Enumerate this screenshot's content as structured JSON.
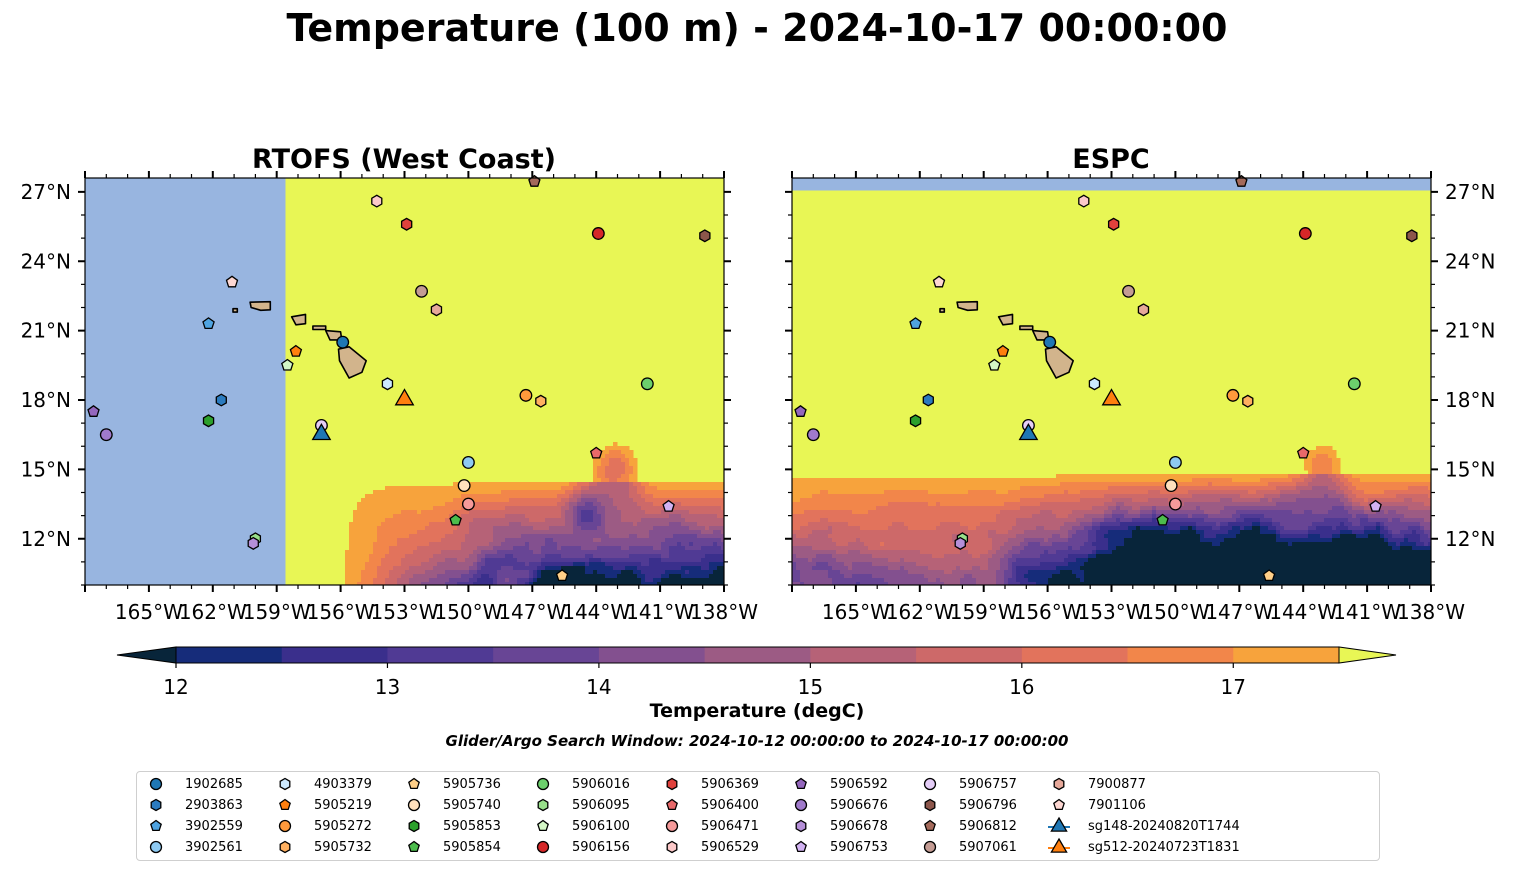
{
  "title": "Temperature (100 m) - 2024-10-17 00:00:00",
  "subtitle": "Glider/Argo Search Window: 2024-10-12 00:00:00 to 2024-10-17 00:00:00",
  "colorbar": {
    "label": "Temperature (degC)",
    "ticks": [
      "12",
      "13",
      "14",
      "15",
      "16",
      "17"
    ],
    "min": 12,
    "max": 17.5,
    "step": 0.5,
    "colors": [
      "#08253a",
      "#162c7a",
      "#3a2f8c",
      "#503a94",
      "#684595",
      "#83508f",
      "#9c5b84",
      "#b66277",
      "#cd6969",
      "#e2735c",
      "#f2864a",
      "#f7a33c",
      "#f6c63e",
      "#e8f655"
    ],
    "ocean_fill_color": "#e8f655",
    "nodata_color": "#98b5e0",
    "land_color": "#d2b48c"
  },
  "chart_data": [
    {
      "type": "map",
      "title": "RTOFS (West Coast)",
      "lon_range": [
        -168,
        -138
      ],
      "lat_range": [
        10,
        27.6
      ],
      "x_ticks": [
        "165°W",
        "162°W",
        "159°W",
        "156°W",
        "153°W",
        "150°W",
        "147°W",
        "144°W",
        "141°W",
        "138°W"
      ],
      "y_ticks": [
        "27°N",
        "24°N",
        "21°N",
        "18°N",
        "15°N",
        "12°N"
      ],
      "no_data_west_of_lon": -158.6,
      "cool_region_note": "cool water south of ~14°N east of 155°W"
    },
    {
      "type": "map",
      "title": "ESPC",
      "lon_range": [
        -168,
        -138
      ],
      "lat_range": [
        10,
        27.6
      ],
      "x_ticks": [
        "165°W",
        "162°W",
        "159°W",
        "156°W",
        "153°W",
        "150°W",
        "147°W",
        "144°W",
        "141°W",
        "138°W"
      ],
      "y_ticks": [
        "27°N",
        "24°N",
        "21°N",
        "18°N",
        "15°N",
        "12°N"
      ],
      "no_data_north_of_lat": 27.1,
      "cool_region_note": "cool water south of ~14°N across whole domain"
    }
  ],
  "observations": [
    {
      "id": "1902685",
      "marker": "circle",
      "color": "#1f77b4",
      "lon": -155.9,
      "lat": 20.5
    },
    {
      "id": "2903863",
      "marker": "hexagon",
      "color": "#2b7bbf",
      "lon": -161.6,
      "lat": 18.0
    },
    {
      "id": "3902559",
      "marker": "pentagon",
      "color": "#4fa3e0",
      "lon": -162.2,
      "lat": 21.3
    },
    {
      "id": "3902561",
      "marker": "circle",
      "color": "#8ecaf2",
      "lon": -150.0,
      "lat": 15.3
    },
    {
      "id": "4903379",
      "marker": "hexagon",
      "color": "#cce9ff",
      "lon": -153.8,
      "lat": 18.7
    },
    {
      "id": "5905219",
      "marker": "pentagon",
      "color": "#ff7f0e",
      "lon": -158.1,
      "lat": 20.1
    },
    {
      "id": "5905272",
      "marker": "circle",
      "color": "#ff9a3c",
      "lon": -147.3,
      "lat": 18.2
    },
    {
      "id": "5905732",
      "marker": "hexagon",
      "color": "#ffb060",
      "lon": -146.6,
      "lat": 17.95
    },
    {
      "id": "5905736",
      "marker": "pentagon",
      "color": "#ffcf88",
      "lon": -145.6,
      "lat": 10.4
    },
    {
      "id": "5905740",
      "marker": "circle",
      "color": "#ffe0bd",
      "lon": -150.2,
      "lat": 14.3
    },
    {
      "id": "5905853",
      "marker": "hexagon",
      "color": "#2ca02c",
      "lon": -162.2,
      "lat": 17.1
    },
    {
      "id": "5905854",
      "marker": "pentagon",
      "color": "#4cbc4c",
      "lon": -150.6,
      "lat": 12.8
    },
    {
      "id": "5906016",
      "marker": "circle",
      "color": "#6ccf6c",
      "lon": -141.6,
      "lat": 18.7
    },
    {
      "id": "5906095",
      "marker": "hexagon",
      "color": "#98df8a",
      "lon": -160.0,
      "lat": 12.0
    },
    {
      "id": "5906100",
      "marker": "pentagon",
      "color": "#d4f7c6",
      "lon": -158.5,
      "lat": 19.5
    },
    {
      "id": "5906156",
      "marker": "circle",
      "color": "#d62728",
      "lon": -143.9,
      "lat": 25.2
    },
    {
      "id": "5906369",
      "marker": "hexagon",
      "color": "#e0413c",
      "lon": -152.9,
      "lat": 25.6
    },
    {
      "id": "5906400",
      "marker": "pentagon",
      "color": "#e8696a",
      "lon": -144.0,
      "lat": 15.7
    },
    {
      "id": "5906471",
      "marker": "circle",
      "color": "#f59a9a",
      "lon": -150.0,
      "lat": 13.5
    },
    {
      "id": "5906529",
      "marker": "hexagon",
      "color": "#fcc9c9",
      "lon": -154.3,
      "lat": 26.6
    },
    {
      "id": "5906592",
      "marker": "pentagon",
      "color": "#9467bd",
      "lon": -167.6,
      "lat": 17.5
    },
    {
      "id": "5906676",
      "marker": "circle",
      "color": "#a07acb",
      "lon": -167.0,
      "lat": 16.5
    },
    {
      "id": "5906678",
      "marker": "hexagon",
      "color": "#b58fd8",
      "lon": -160.1,
      "lat": 11.8
    },
    {
      "id": "5906753",
      "marker": "pentagon",
      "color": "#d2b2f2",
      "lon": -140.6,
      "lat": 13.4
    },
    {
      "id": "5906757",
      "marker": "circle",
      "color": "#e4cdf7",
      "lon": -156.9,
      "lat": 16.9
    },
    {
      "id": "5906796",
      "marker": "hexagon",
      "color": "#8c564b",
      "lon": -138.9,
      "lat": 25.1
    },
    {
      "id": "5906812",
      "marker": "pentagon",
      "color": "#a46a5b",
      "lon": -146.9,
      "lat": 27.45
    },
    {
      "id": "5907061",
      "marker": "circle",
      "color": "#c49c94",
      "lon": -152.2,
      "lat": 22.7
    },
    {
      "id": "7900877",
      "marker": "hexagon",
      "color": "#e6a89a",
      "lon": -151.5,
      "lat": 21.9
    },
    {
      "id": "7901106",
      "marker": "pentagon",
      "color": "#fdd7d2",
      "lon": -161.1,
      "lat": 23.1
    },
    {
      "id": "sg148-20240820T1744",
      "marker": "triangle",
      "color": "#1f77b4",
      "lon": -156.9,
      "lat": 16.6
    },
    {
      "id": "sg512-20240723T1831",
      "marker": "triangle",
      "color": "#ff7f0e",
      "lon": -153.0,
      "lat": 18.1
    }
  ]
}
